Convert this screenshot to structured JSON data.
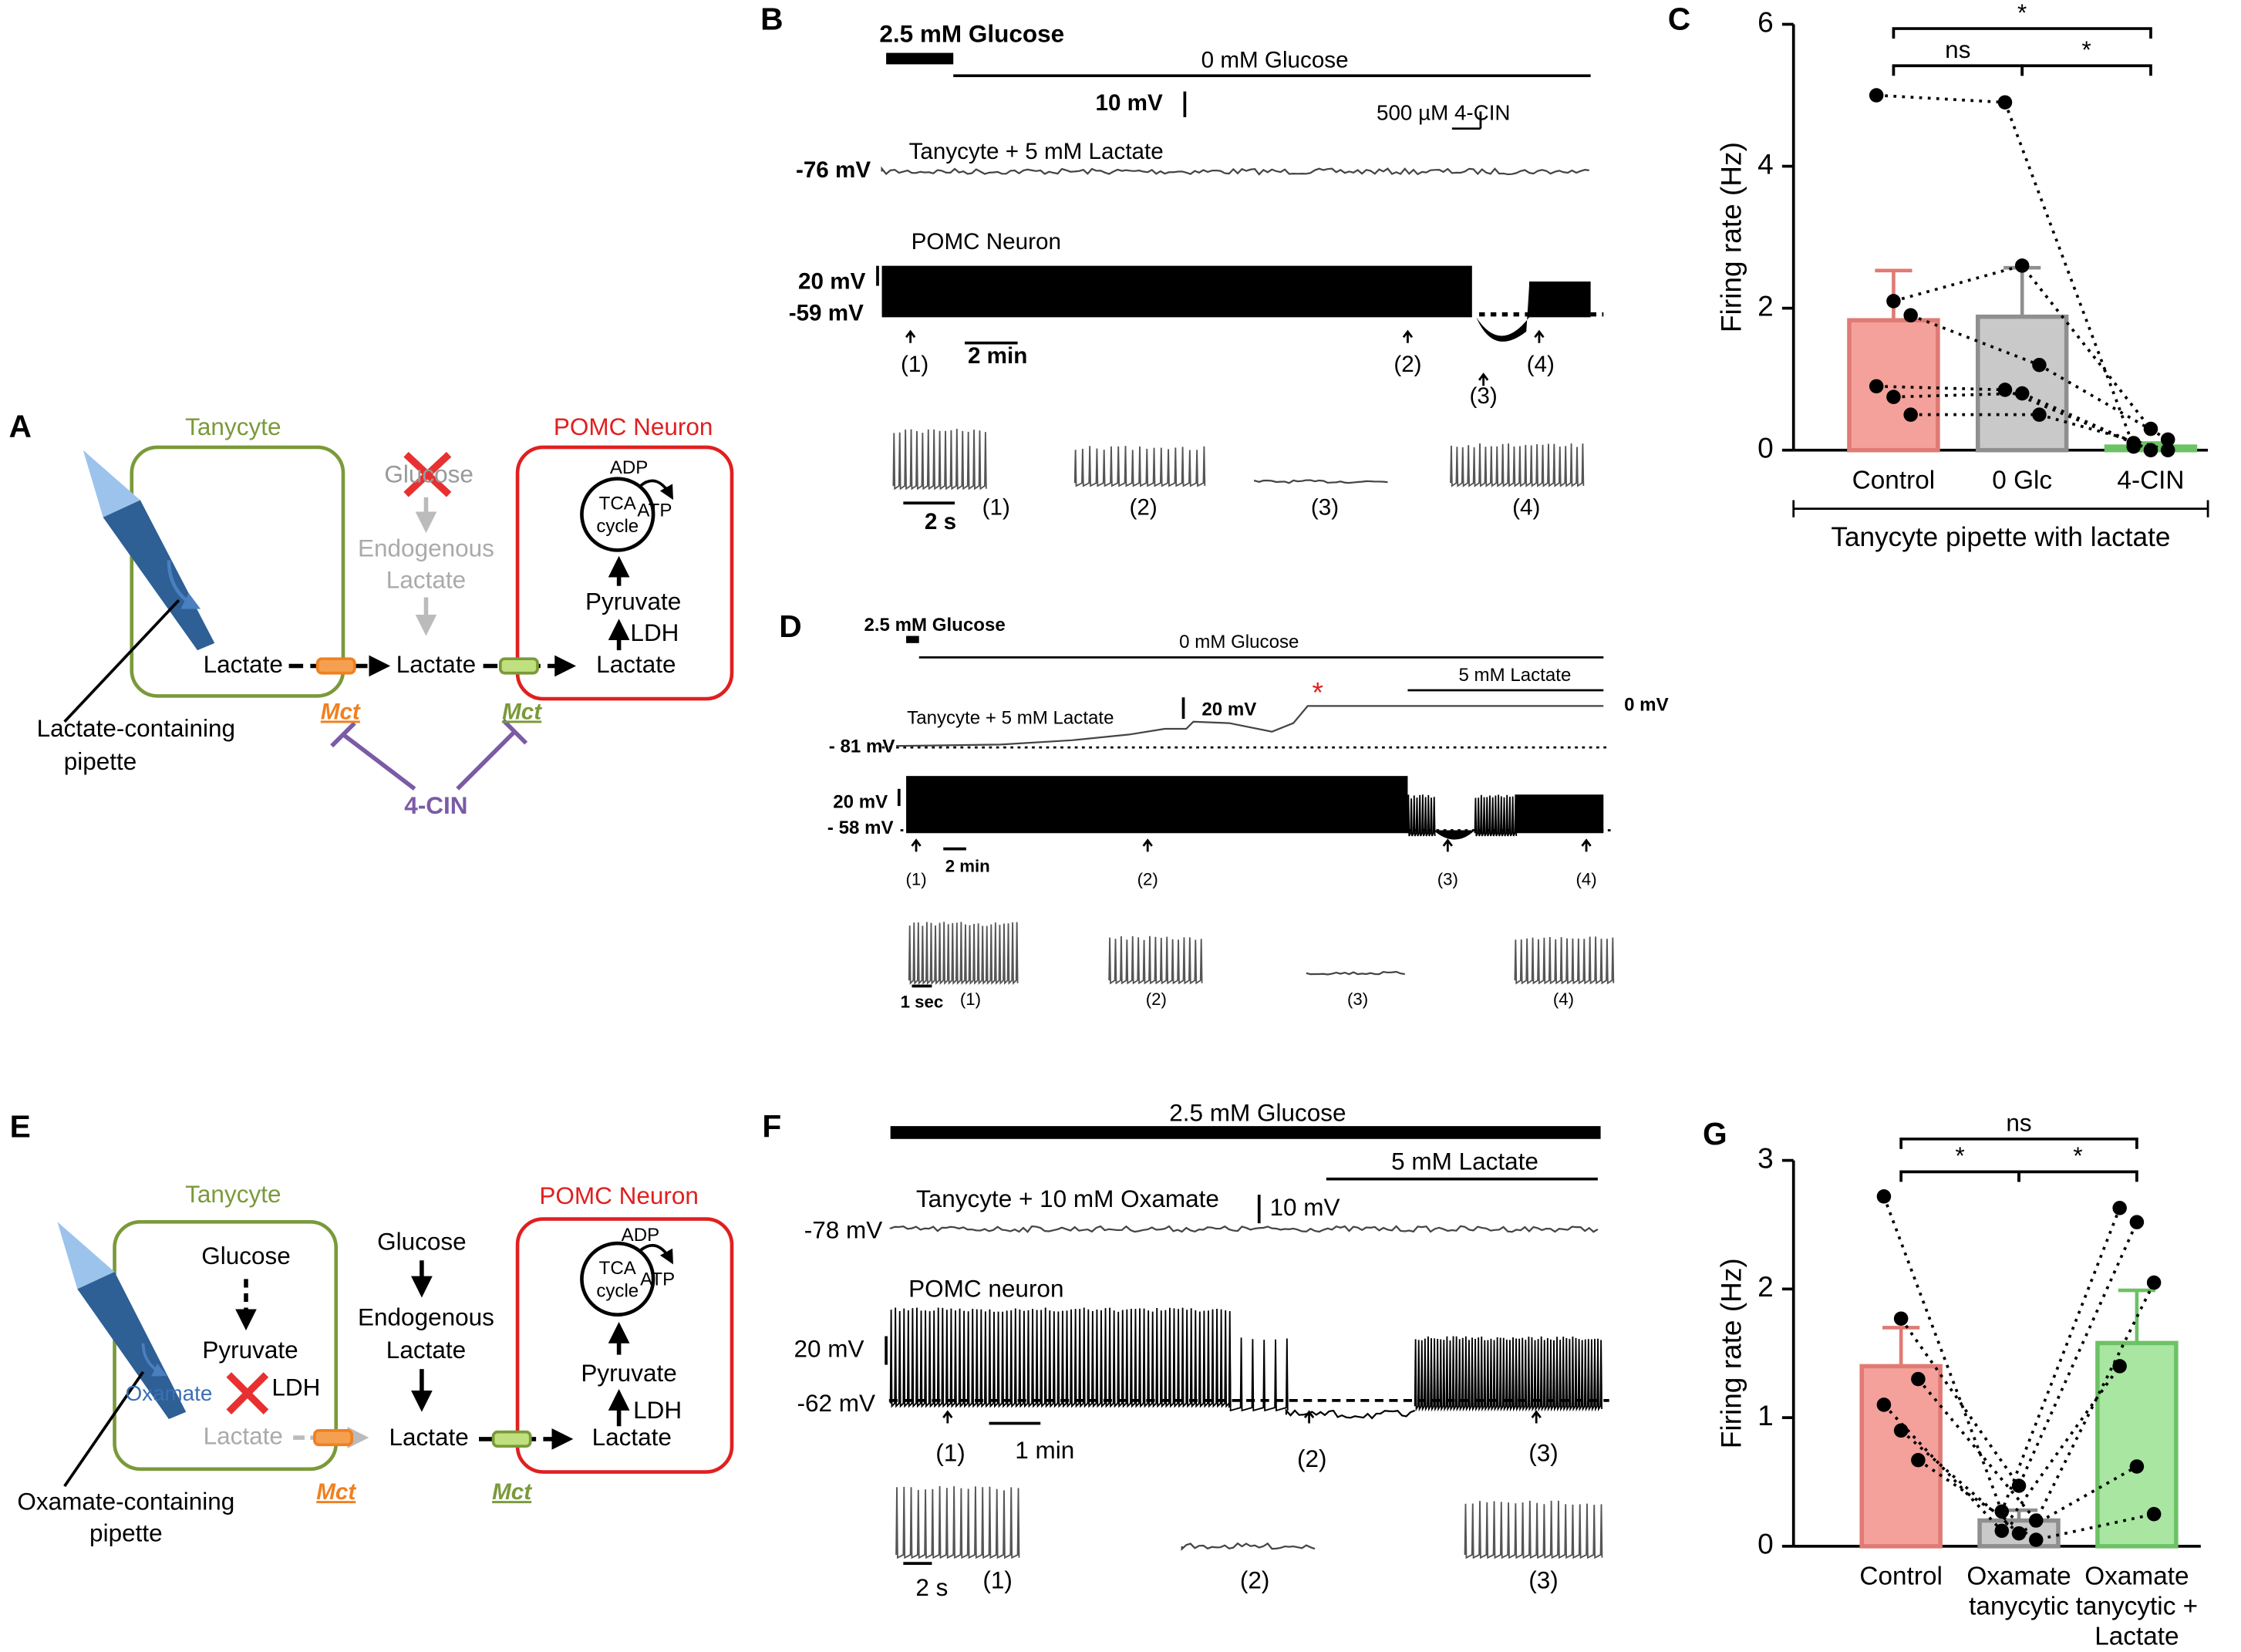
{
  "panel_letters": [
    "A",
    "B",
    "C",
    "D",
    "E",
    "F",
    "G"
  ],
  "panel_a": {
    "labels": [
      "Tanycyte",
      "Glucose",
      "Endogenous",
      "Lactate",
      "POMC Neuron",
      "ADP",
      "ATP",
      "TCA",
      "cycle",
      "Pyruvate",
      "LDH",
      "Lactate",
      "Lactate",
      "Lactate",
      "Mct",
      "Mct",
      "Lactate-containing",
      "pipette",
      "4-CIN"
    ]
  },
  "panel_b": {
    "labels": [
      "2.5 mM Glucose",
      "0 mM Glucose",
      "10 mV",
      "500 µM 4-CIN",
      "Tanycyte + 5 mM Lactate",
      "-76 mV",
      "POMC Neuron",
      "20 mV",
      "-59 mV",
      "(1)",
      "2 min",
      "(2)",
      "(3)",
      "(4)",
      "2 s",
      "(1)",
      "(2)",
      "(3)",
      "(4)"
    ]
  },
  "panel_d": {
    "labels": [
      "2.5 mM Glucose",
      "0 mM Glucose",
      "5 mM Lactate",
      "Tanycyte + 5 mM Lactate",
      "20 mV",
      "*",
      "0 mV",
      "- 81 mV",
      "20 mV",
      "- 58 mV",
      "(1)",
      "2 min",
      "(2)",
      "(3)",
      "(4)",
      "1 sec",
      "(1)",
      "(2)",
      "(3)",
      "(4)"
    ]
  },
  "panel_e": {
    "labels": [
      "Tanycyte",
      "Glucose",
      "Pyruvate",
      "Oxamate",
      "LDH",
      "Lactate",
      "Glucose",
      "Endogenous",
      "Lactate",
      "Lactate",
      "POMC Neuron",
      "ADP",
      "ATP",
      "TCA",
      "cycle",
      "Pyruvate",
      "LDH",
      "Lactate",
      "Mct",
      "Mct",
      "Oxamate-containing",
      "pipette"
    ]
  },
  "panel_f": {
    "labels": [
      "2.5 mM Glucose",
      "5 mM Lactate",
      "Tanycyte + 10 mM Oxamate",
      "10 mV",
      "-78 mV",
      "POMC neuron",
      "20 mV",
      "-62 mV",
      "(1)",
      "1 min",
      "(2)",
      "(3)",
      "2 s",
      "(1)",
      "(2)",
      "(3)"
    ]
  },
  "chart_data": [
    {
      "type": "bar",
      "y_label": "Firing rate (Hz)",
      "x_label": "Tanycyte pipette with lactate",
      "categories": [
        [
          "Control"
        ],
        [
          "0 Glc"
        ],
        [
          "4-CIN"
        ]
      ],
      "values": [
        1.83,
        1.88,
        0.05
      ],
      "errors": [
        0.7,
        0.69,
        0.05
      ],
      "colors": [
        "#f4a19b",
        "#c9c9c9",
        "#a9e6a2"
      ],
      "edge_colors": [
        "#e07a74",
        "#8f8f8f",
        "#6cc264"
      ],
      "subjects": [
        [
          5.0,
          4.9,
          0.05
        ],
        [
          2.1,
          2.6,
          0.3
        ],
        [
          1.9,
          1.2,
          0.15
        ],
        [
          0.9,
          0.85,
          0.1
        ],
        [
          0.75,
          0.8,
          0
        ],
        [
          0.5,
          0.5,
          0
        ]
      ],
      "annotations": [
        "*",
        "ns",
        "*"
      ],
      "ylim": [
        0,
        6
      ],
      "yticks": [
        0,
        2,
        4,
        6
      ]
    },
    {
      "type": "bar",
      "y_label": "Firing rate (Hz)",
      "categories": [
        [
          "Control"
        ],
        [
          "Oxamate",
          "tanycytic"
        ],
        [
          "Oxamate",
          "tanycytic +",
          "Lactate"
        ]
      ],
      "values": [
        1.4,
        0.2,
        1.58
      ],
      "errors": [
        0.3,
        0.08,
        0.41
      ],
      "colors": [
        "#f4a19b",
        "#c9c9c9",
        "#a9e6a2"
      ],
      "edge_colors": [
        "#e07a74",
        "#8f8f8f",
        "#6cc264"
      ],
      "subjects": [
        [
          2.72,
          0.27,
          2.63
        ],
        [
          1.77,
          0.47,
          2.52
        ],
        [
          1.3,
          0.2,
          2.05
        ],
        [
          1.1,
          0.12,
          1.4
        ],
        [
          0.9,
          0.1,
          0.62
        ],
        [
          0.67,
          0.05,
          0.25
        ]
      ],
      "annotations": [
        "ns",
        "*",
        "*"
      ],
      "ylim": [
        0,
        3
      ],
      "yticks": [
        0,
        1,
        2,
        3
      ]
    }
  ]
}
